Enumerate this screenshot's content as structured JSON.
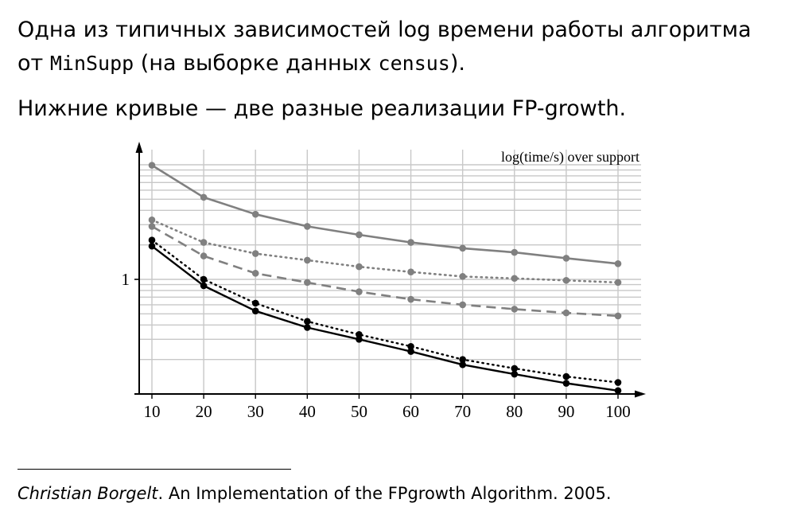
{
  "slide": {
    "line1": "Одна из типичных зависимостей log времени работы алгоритма",
    "line2_prefix": "от ",
    "line2_code1": "MinSupp",
    "line2_middle": " (на выборке данных ",
    "line2_code2": "census",
    "line2_suffix": ").",
    "line3": "Нижние кривые — две разные реализации FP-growth.",
    "footnote_author": "Christian Borgelt",
    "footnote_rest": ". An Implementation of the FPgrowth Algorithm. 2005."
  },
  "chart_data": {
    "type": "line",
    "title": "log(time/s) over support",
    "xlabel": "",
    "ylabel": "",
    "x": [
      10,
      20,
      30,
      40,
      50,
      60,
      70,
      80,
      90,
      100
    ],
    "x_tick_labels": [
      "10",
      "20",
      "30",
      "40",
      "50",
      "60",
      "70",
      "80",
      "90",
      100
    ],
    "y_tick_labels": [
      "1"
    ],
    "y_scale": "log",
    "ylim": [
      0.1,
      14
    ],
    "grid": true,
    "series": [
      {
        "color": "#808080",
        "style": "solid",
        "values": [
          9.9,
          5.2,
          3.7,
          2.9,
          2.45,
          2.1,
          1.87,
          1.72,
          1.53,
          1.37
        ]
      },
      {
        "color": "#808080",
        "style": "dotted",
        "values": [
          3.3,
          2.1,
          1.68,
          1.47,
          1.29,
          1.16,
          1.06,
          1.02,
          0.98,
          0.94
        ]
      },
      {
        "color": "#808080",
        "style": "dashed",
        "values": [
          2.9,
          1.6,
          1.13,
          0.94,
          0.78,
          0.67,
          0.6,
          0.55,
          0.51,
          0.48
        ]
      },
      {
        "color": "#000000",
        "style": "dotted",
        "values": [
          2.2,
          1.0,
          0.62,
          0.43,
          0.33,
          0.26,
          0.2,
          0.167,
          0.142,
          0.126
        ]
      },
      {
        "color": "#000000",
        "style": "solid",
        "values": [
          1.95,
          0.88,
          0.53,
          0.38,
          0.3,
          0.235,
          0.18,
          0.149,
          0.124,
          0.107
        ]
      }
    ]
  }
}
